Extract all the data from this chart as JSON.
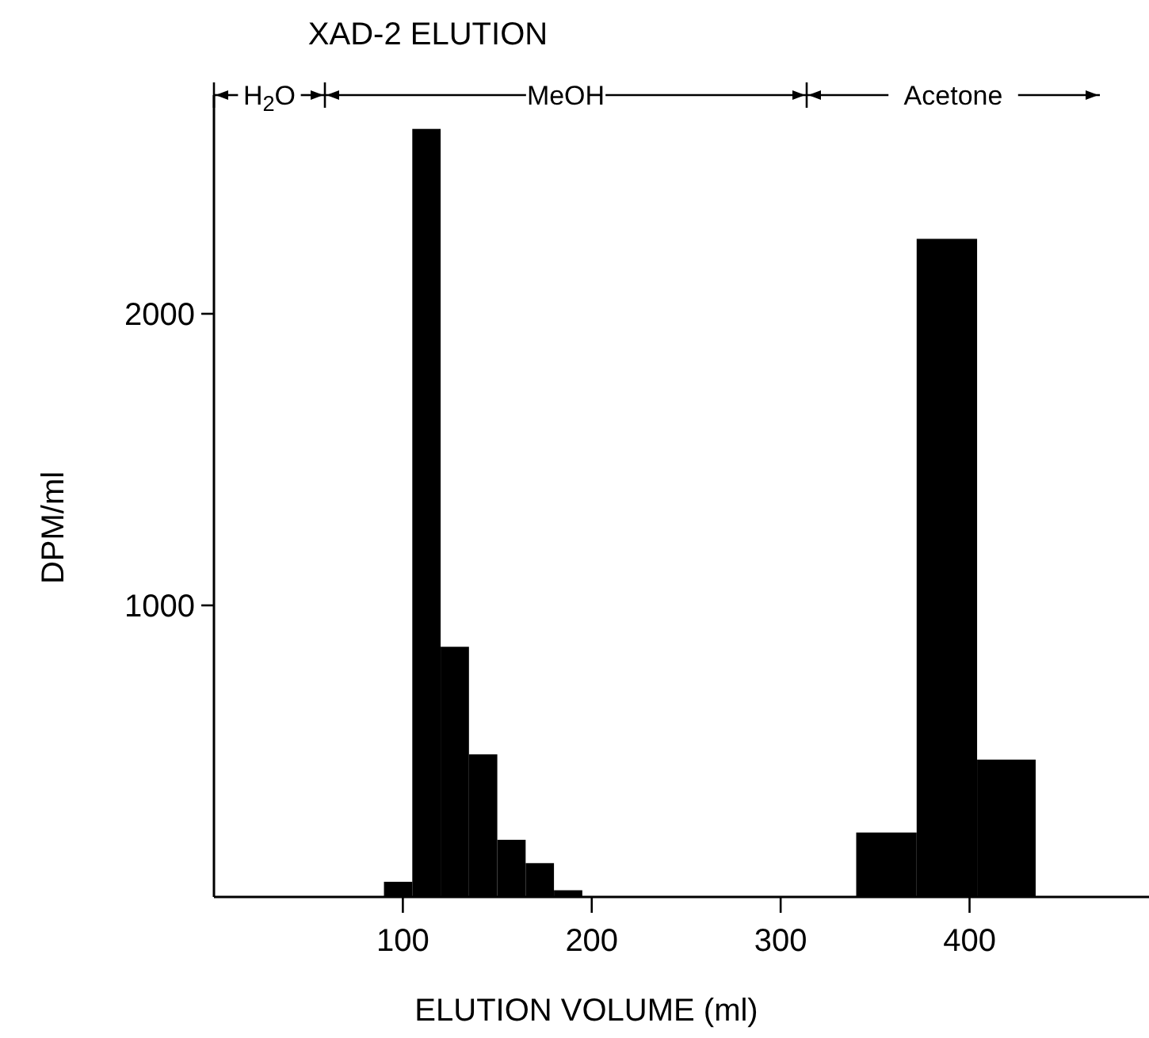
{
  "chart_data": {
    "type": "histogram",
    "title": "XAD-2  ELUTION",
    "xlabel": "ELUTION VOLUME (ml)",
    "ylabel": "DPM/ml",
    "bins": [
      90,
      105,
      120,
      135,
      150,
      165,
      180,
      195,
      340,
      372,
      404,
      435
    ],
    "values": [
      52,
      2634,
      858,
      489,
      196,
      116,
      23,
      0,
      221,
      2257,
      471
    ],
    "color": "#000000",
    "xlim": [
      0,
      495
    ],
    "xticks": [
      100,
      200,
      300,
      400
    ],
    "ylim": [
      0,
      2750
    ],
    "yticks": [
      1000,
      2000
    ],
    "annotations": [
      "H$_{2}$O",
      "MeOH",
      "Acetone"
    ]
  }
}
